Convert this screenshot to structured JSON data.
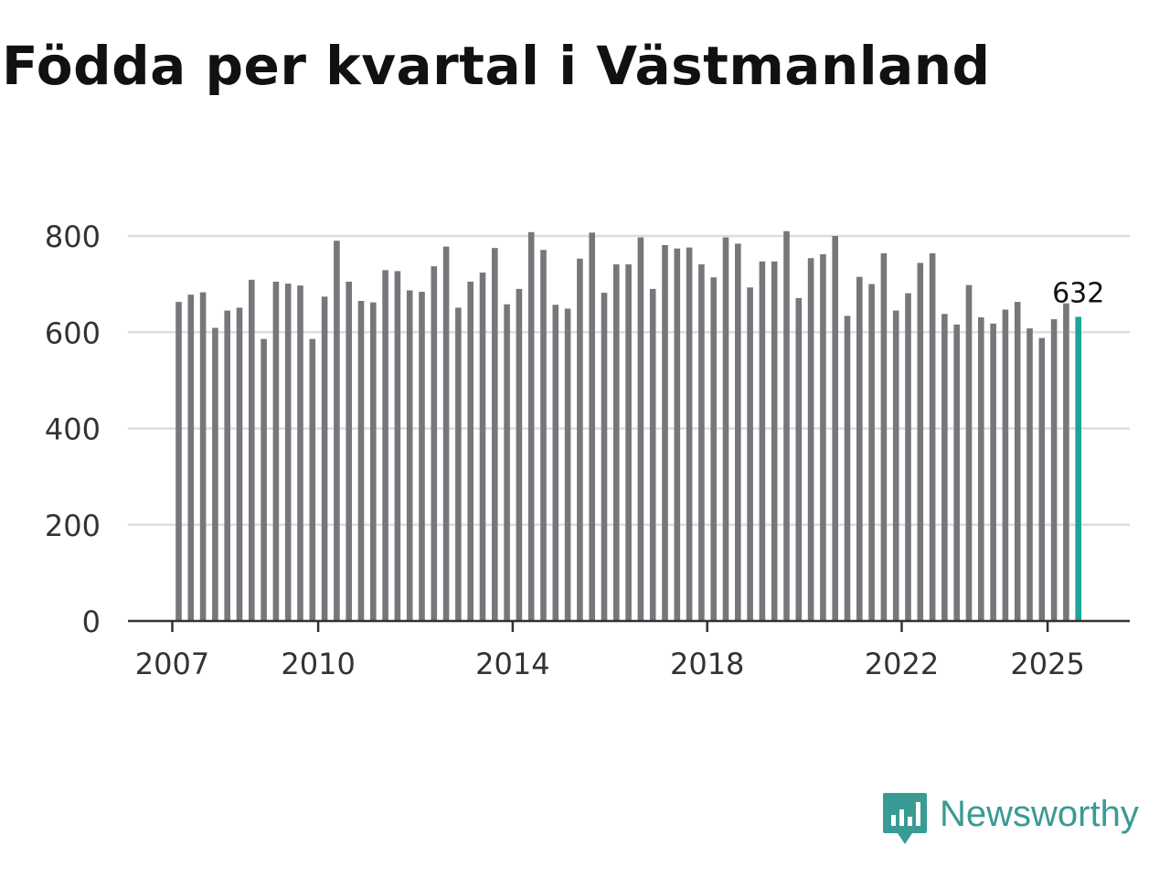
{
  "chart_data": {
    "type": "bar",
    "title": "Födda per kvartal i Västmanland",
    "xlabel": "",
    "ylabel": "",
    "ylim": [
      0,
      800
    ],
    "yticks": [
      "0",
      "200",
      "400",
      "600",
      "800"
    ],
    "xticks": [
      {
        "label": "2007",
        "year": 2007
      },
      {
        "label": "2010",
        "year": 2010
      },
      {
        "label": "2014",
        "year": 2014
      },
      {
        "label": "2018",
        "year": 2018
      },
      {
        "label": "2022",
        "year": 2022
      },
      {
        "label": "2025",
        "year": 2025
      }
    ],
    "first_period": "2007 Q1",
    "values": [
      663,
      678,
      683,
      609,
      645,
      651,
      709,
      586,
      705,
      701,
      697,
      586,
      674,
      790,
      705,
      665,
      662,
      729,
      727,
      687,
      684,
      737,
      778,
      651,
      705,
      724,
      775,
      658,
      690,
      808,
      771,
      657,
      649,
      753,
      807,
      682,
      741,
      741,
      797,
      690,
      781,
      774,
      776,
      741,
      714,
      797,
      784,
      693,
      747,
      747,
      810,
      671,
      754,
      762,
      800,
      634,
      715,
      700,
      764,
      645,
      681,
      744,
      764,
      638,
      616,
      698,
      631,
      618,
      647,
      663,
      608,
      588,
      627,
      660,
      632
    ],
    "highlight_index": 74,
    "highlight_label": "632",
    "colors": {
      "bar": "#77767b",
      "highlight": "#1ea39a",
      "grid": "#dddddd",
      "axis": "#333333",
      "text": "#333333"
    }
  },
  "branding": {
    "name": "Newsworthy",
    "logo_icon": "newsworthy-logo-icon",
    "color": "#3a9a94"
  }
}
